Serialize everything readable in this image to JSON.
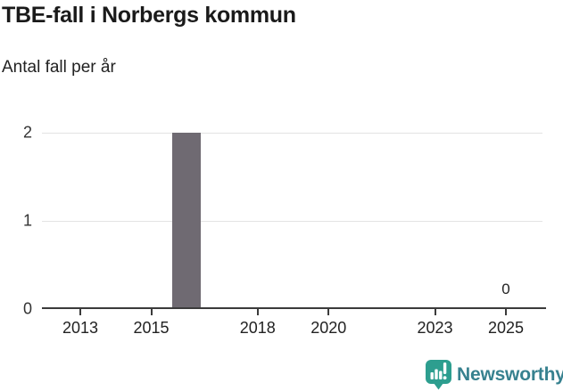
{
  "header": {
    "title": "TBE-fall i Norbergs kommun",
    "subtitle": "Antal fall per år"
  },
  "chart_data": {
    "type": "bar",
    "title": "TBE-fall i Norbergs kommun",
    "subtitle": "Antal fall per år",
    "xlabel": "",
    "ylabel": "Antal fall per år",
    "ylim": [
      0,
      2
    ],
    "y_ticks": [
      0,
      1,
      2
    ],
    "x_tick_years": [
      2013,
      2015,
      2018,
      2020,
      2023,
      2025
    ],
    "bars": [
      {
        "year": 2016,
        "value": 2
      }
    ],
    "data_labels": [
      {
        "year": 2025,
        "value": 0
      }
    ],
    "bar_color": "#6f6a72",
    "grid": "horizontal",
    "legend": "none"
  },
  "footer": {
    "brand_label": "Newsworthy",
    "logo_icon": "speech-bubble-bar-chart-exclamation",
    "logo_icon_color": "#2d9e8f",
    "brand_text_color": "#37818f"
  }
}
